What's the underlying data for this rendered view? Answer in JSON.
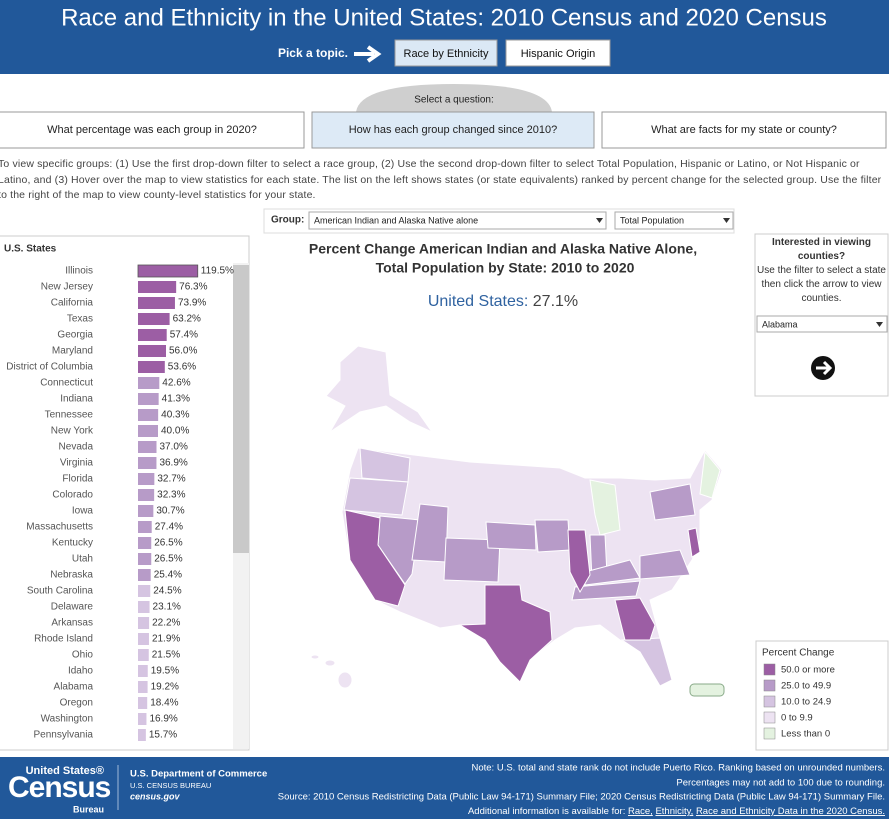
{
  "header": {
    "title": "Race and Ethnicity in the United States: 2010 Census and 2020 Census",
    "topic_prompt": "Pick a topic.",
    "topics": [
      "Race by Ethnicity",
      "Hispanic Origin"
    ]
  },
  "question_prompt": "Select a question:",
  "questions": [
    "What percentage was each group in 2020?",
    "How has each group changed since 2010?",
    "What are facts for my state or county?"
  ],
  "instructions": "To view specific groups: (1) Use the first drop-down filter to select a race group, (2) Use the second drop-down filter to select Total Population, Hispanic or Latino, or Not Hispanic or Latino, and (3) Hover over the map to view statistics for each state. The list on the left shows states (or state equivalents) ranked by percent change for the selected group. Use the filter to the right of the map to view county-level statistics for your state.",
  "filters": {
    "group_label": "Group:",
    "group": "American Indian and Alaska Native alone",
    "population": "Total Population"
  },
  "left_panel": {
    "title": "U.S. States",
    "states": [
      "Illinois",
      "New Jersey",
      "California",
      "Texas",
      "Georgia",
      "Maryland",
      "District of Columbia",
      "Connecticut",
      "Indiana",
      "Tennessee",
      "New York",
      "Nevada",
      "Virginia",
      "Florida",
      "Colorado",
      "Iowa",
      "Massachusetts",
      "Kentucky",
      "Utah",
      "Nebraska",
      "South Carolina",
      "Delaware",
      "Arkansas",
      "Rhode Island",
      "Ohio",
      "Idaho",
      "Alabama",
      "Oregon",
      "Washington",
      "Pennsylvania"
    ],
    "values": [
      119.5,
      76.3,
      73.9,
      63.2,
      57.4,
      56.0,
      53.6,
      42.6,
      41.3,
      40.3,
      40.0,
      37.0,
      36.9,
      32.7,
      32.3,
      30.7,
      27.4,
      26.5,
      26.5,
      25.4,
      24.5,
      23.1,
      22.2,
      21.9,
      21.5,
      19.5,
      19.2,
      18.4,
      16.9,
      15.7
    ],
    "value_labels": [
      "119.5%",
      "76.3%",
      "73.9%",
      "63.2%",
      "57.4%",
      "56.0%",
      "53.6%",
      "42.6%",
      "41.3%",
      "40.3%",
      "40.0%",
      "37.0%",
      "36.9%",
      "32.7%",
      "32.3%",
      "30.7%",
      "27.4%",
      "26.5%",
      "26.5%",
      "25.4%",
      "24.5%",
      "23.1%",
      "22.2%",
      "21.9%",
      "21.5%",
      "19.5%",
      "19.2%",
      "18.4%",
      "16.9%",
      "15.7%"
    ]
  },
  "map": {
    "title": [
      "Percent Change American Indian and Alaska Native Alone,",
      "Total Population by State: 2010 to 2020"
    ],
    "us_label": "United States:",
    "us_value": "27.1%"
  },
  "county_panel": {
    "title": "Interested in viewing counties?",
    "text": "Use the filter to select a state then click the arrow to view counties.",
    "state": "Alabama"
  },
  "legend": {
    "title": "Percent Change",
    "items": [
      {
        "value": 50,
        "label": "50.0 or more",
        "color": "#9c5ea4"
      },
      {
        "value": 25,
        "label": "25.0 to 49.9",
        "color": "#b79bc8"
      },
      {
        "value": 10,
        "label": "10.0 to 24.9",
        "color": "#d5c4e1"
      },
      {
        "value": 0,
        "label": "0 to 9.9",
        "color": "#ede3f2"
      },
      {
        "label": "Less than 0",
        "color": "#e4f2e0"
      }
    ]
  },
  "footer": {
    "logo": [
      "United States®",
      "Census",
      "Bureau"
    ],
    "department": [
      "U.S. Department of Commerce",
      "U.S. CENSUS BUREAU",
      "census.gov"
    ],
    "notes": [
      "Note: U.S. total and state rank do not include Puerto Rico. Ranking based on unrounded numbers.",
      "Percentages may not add to 100 due to rounding.",
      "Source: 2010 Census Redistricting Data (Public Law 94-171) Summary File; 2020 Census Redistricting Data (Public Law 94-171) Summary File."
    ],
    "more_prompt": "Additional information is available for:",
    "links": [
      "Race,",
      "Ethnicity,",
      "Race and Ethnicity Data in the 2020 Census."
    ]
  }
}
